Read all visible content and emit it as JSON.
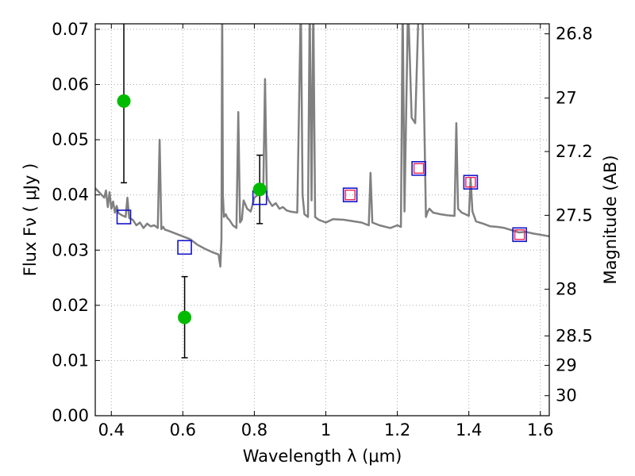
{
  "chart_data": {
    "type": "line",
    "xlabel": "Wavelength  λ (μm)",
    "ylabel": "Flux  Fν  ( μJy )",
    "y2label": "Magnitude (AB)",
    "xlim": [
      0.355,
      1.625
    ],
    "ylim": [
      0.0,
      0.071
    ],
    "grid": true,
    "x_ticks": [
      0.4,
      0.6,
      0.8,
      1.0,
      1.2,
      1.4,
      1.6
    ],
    "x_tick_labels": [
      "0.4",
      "0.6",
      "0.8",
      "1",
      "1.2",
      "1.4",
      "1.6"
    ],
    "y_ticks": [
      0.0,
      0.01,
      0.02,
      0.03,
      0.04,
      0.05,
      0.06,
      0.07
    ],
    "y_tick_labels": [
      "0.00",
      "0.01",
      "0.02",
      "0.03",
      "0.04",
      "0.05",
      "0.06",
      "0.07"
    ],
    "y2_ticks": [
      26.8,
      27.0,
      27.2,
      27.5,
      28.0,
      28.5,
      29.0,
      30.0
    ],
    "y2_tick_labels": [
      "26.8",
      "27",
      "27.2",
      "27.5",
      "28",
      "28.5",
      "29",
      "30"
    ],
    "colors": {
      "model": "#808080",
      "observed": "#00bb00",
      "model_photometry": "#1515cc",
      "model_photometry_inner": "#ee2255",
      "errorbar": "#000000",
      "grid": "#aaaaaa"
    },
    "series": [
      {
        "type": "line",
        "x": [
          0.355,
          0.37,
          0.38,
          0.385,
          0.39,
          0.395,
          0.4,
          0.405,
          0.41,
          0.415,
          0.42,
          0.43,
          0.44,
          0.445,
          0.45,
          0.46,
          0.47,
          0.48,
          0.49,
          0.5,
          0.51,
          0.52,
          0.53,
          0.535,
          0.54,
          0.545,
          0.55,
          0.56,
          0.58,
          0.6,
          0.62,
          0.64,
          0.66,
          0.68,
          0.7,
          0.705,
          0.708,
          0.71,
          0.712,
          0.715,
          0.72,
          0.725,
          0.73,
          0.74,
          0.75,
          0.755,
          0.76,
          0.765,
          0.77,
          0.78,
          0.79,
          0.8,
          0.81,
          0.82,
          0.825,
          0.83,
          0.835,
          0.84,
          0.85,
          0.86,
          0.87,
          0.88,
          0.89,
          0.9,
          0.92,
          0.93,
          0.935,
          0.94,
          0.95,
          0.955,
          0.96,
          0.965,
          0.97,
          0.98,
          1.0,
          1.02,
          1.05,
          1.08,
          1.1,
          1.12,
          1.125,
          1.13,
          1.15,
          1.18,
          1.2,
          1.21,
          1.215,
          1.22,
          1.23,
          1.24,
          1.25,
          1.26,
          1.27,
          1.28,
          1.285,
          1.29,
          1.3,
          1.32,
          1.34,
          1.36,
          1.365,
          1.37,
          1.38,
          1.39,
          1.4,
          1.405,
          1.41,
          1.42,
          1.44,
          1.46,
          1.48,
          1.5,
          1.52,
          1.54,
          1.56,
          1.58,
          1.6,
          1.625
        ],
        "y": [
          0.0412,
          0.0402,
          0.0395,
          0.0408,
          0.0378,
          0.0405,
          0.0375,
          0.0388,
          0.0368,
          0.038,
          0.0367,
          0.0363,
          0.036,
          0.0395,
          0.0358,
          0.0355,
          0.0345,
          0.035,
          0.034,
          0.0348,
          0.0343,
          0.0345,
          0.034,
          0.05,
          0.0338,
          0.0342,
          0.0337,
          0.0335,
          0.033,
          0.0325,
          0.032,
          0.031,
          0.0303,
          0.0297,
          0.0292,
          0.027,
          0.032,
          0.075,
          0.04,
          0.036,
          0.0365,
          0.0358,
          0.0355,
          0.0345,
          0.034,
          0.055,
          0.035,
          0.0355,
          0.039,
          0.0375,
          0.037,
          0.0395,
          0.04,
          0.0405,
          0.041,
          0.061,
          0.04,
          0.039,
          0.038,
          0.0385,
          0.0375,
          0.0378,
          0.0372,
          0.037,
          0.0368,
          0.075,
          0.04,
          0.0365,
          0.036,
          0.075,
          0.039,
          0.075,
          0.036,
          0.0355,
          0.035,
          0.0356,
          0.0355,
          0.0352,
          0.035,
          0.0345,
          0.044,
          0.035,
          0.0345,
          0.034,
          0.0345,
          0.0342,
          0.075,
          0.037,
          0.075,
          0.054,
          0.053,
          0.075,
          0.074,
          0.036,
          0.037,
          0.0375,
          0.0368,
          0.0365,
          0.0363,
          0.0362,
          0.053,
          0.0375,
          0.0368,
          0.0365,
          0.0362,
          0.043,
          0.037,
          0.0352,
          0.0348,
          0.0343,
          0.0342,
          0.034,
          0.0336,
          0.0332,
          0.0333,
          0.033,
          0.0328,
          0.0325
        ]
      },
      {
        "type": "scatter",
        "name": "observed",
        "marker": "circle",
        "x": [
          0.435,
          0.605,
          0.815
        ],
        "y": [
          0.057,
          0.0178,
          0.041
        ],
        "yerr_low": [
          0.0148,
          0.0073,
          0.0062
        ],
        "yerr_high": [
          0.014,
          0.0074,
          0.0062
        ]
      },
      {
        "type": "scatter",
        "name": "model photometry",
        "marker": "open-square",
        "x": [
          0.435,
          0.605,
          0.815,
          1.068,
          1.26,
          1.405,
          1.542
        ],
        "y": [
          0.036,
          0.0305,
          0.0395,
          0.04,
          0.0448,
          0.0423,
          0.0328
        ]
      },
      {
        "type": "scatter",
        "name": "inner model photometry",
        "marker": "small-square",
        "x": [
          1.068,
          1.26,
          1.405,
          1.542
        ],
        "y": [
          0.04,
          0.0448,
          0.0423,
          0.0328
        ]
      }
    ]
  }
}
